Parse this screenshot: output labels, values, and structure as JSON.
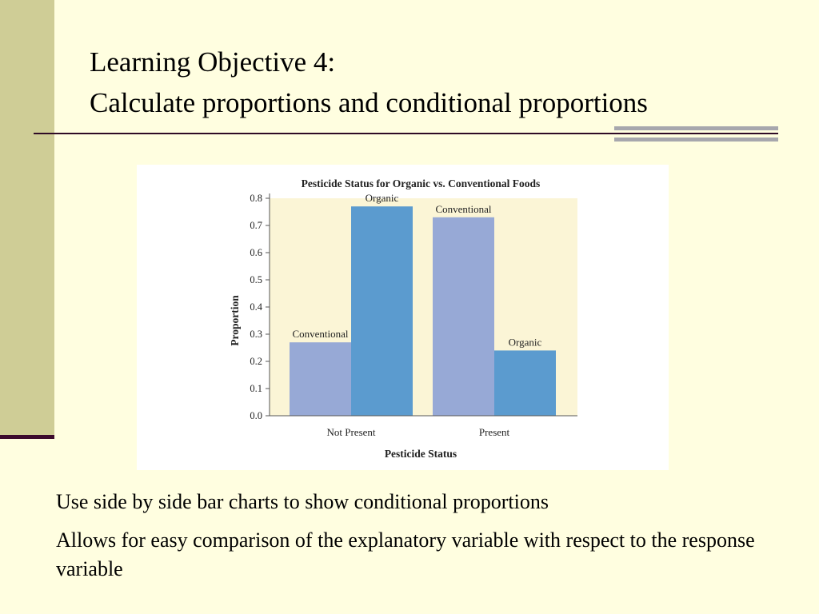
{
  "slide": {
    "title_line1": "Learning Objective 4:",
    "title_line2": "Calculate proportions and conditional proportions",
    "bullets": [
      "Use side by side bar charts to show conditional proportions",
      "Allows for easy comparison of the explanatory variable with respect to the response variable"
    ]
  },
  "colors": {
    "background": "#FFFEE0",
    "sidebar": "#CFCD96",
    "rule": "#3C0A2D",
    "plot_bg": "#FBF5D6",
    "conventional": "#97A9D6",
    "organic": "#5B9BCF"
  },
  "chart_data": {
    "type": "bar",
    "title": "Pesticide Status for Organic vs. Conventional Foods",
    "xlabel": "Pesticide Status",
    "ylabel": "Proportion",
    "ylim": [
      0,
      0.8
    ],
    "yticks": [
      "0.0",
      "0.1",
      "0.2",
      "0.3",
      "0.4",
      "0.5",
      "0.6",
      "0.7",
      "0.8"
    ],
    "categories": [
      "Not Present",
      "Present"
    ],
    "series": [
      {
        "name": "Conventional",
        "values": [
          0.27,
          0.73
        ]
      },
      {
        "name": "Organic",
        "values": [
          0.77,
          0.24
        ]
      }
    ],
    "grid": false,
    "legend": "none (bar labels)"
  }
}
